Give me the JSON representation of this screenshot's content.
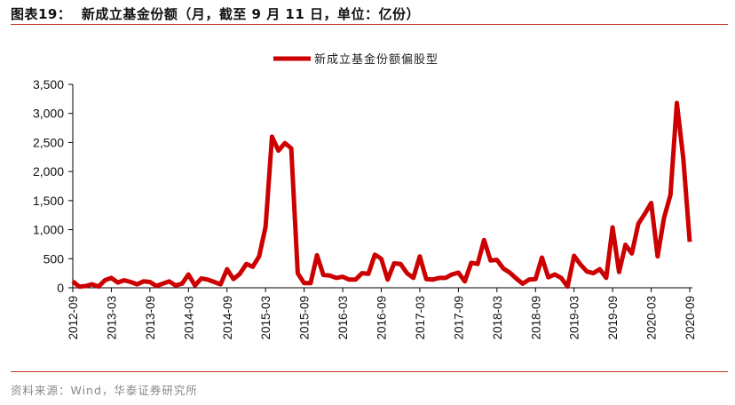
{
  "title": "图表19：  新成立基金份额（月，截至 9 月 11 日，单位：亿份）",
  "source": "资料来源：Wind，华泰证券研究所",
  "colors": {
    "line": "#cc0000",
    "rule": "#c0392b",
    "axis": "#000000"
  },
  "chart_data": {
    "type": "line",
    "title": "新成立基金份额（月，截至 9 月 11 日，单位：亿份）",
    "xlabel": "",
    "ylabel": "",
    "x_start": "2012-09",
    "x_end": "2020-09",
    "x_frequency": "monthly",
    "ylim": [
      0,
      3500
    ],
    "y_ticks": [
      0,
      500,
      1000,
      1500,
      2000,
      2500,
      3000,
      3500
    ],
    "y_tick_labels": [
      "0",
      "500",
      "1,000",
      "1,500",
      "2,000",
      "2,500",
      "3,000",
      "3,500"
    ],
    "x_tick_labels": [
      "2012-09",
      "2013-03",
      "2013-09",
      "2014-03",
      "2014-09",
      "2015-03",
      "2015-09",
      "2016-03",
      "2016-09",
      "2017-03",
      "2017-09",
      "2018-03",
      "2018-09",
      "2019-03",
      "2019-09",
      "2020-03",
      "2020-09"
    ],
    "grid": false,
    "legend_position": "top-center",
    "series": [
      {
        "name": "新成立基金份额偏股型",
        "values": [
          110,
          20,
          30,
          60,
          20,
          130,
          170,
          90,
          130,
          100,
          60,
          110,
          100,
          30,
          70,
          110,
          40,
          70,
          230,
          40,
          160,
          140,
          100,
          60,
          320,
          150,
          240,
          410,
          360,
          540,
          1050,
          2600,
          2360,
          2490,
          2400,
          250,
          80,
          80,
          560,
          220,
          210,
          170,
          190,
          140,
          140,
          250,
          240,
          570,
          500,
          140,
          420,
          410,
          250,
          170,
          540,
          150,
          140,
          170,
          170,
          230,
          260,
          110,
          430,
          410,
          820,
          470,
          480,
          330,
          260,
          160,
          70,
          140,
          150,
          520,
          180,
          230,
          170,
          20,
          550,
          400,
          280,
          250,
          320,
          170,
          1040,
          270,
          740,
          590,
          1100,
          1270,
          1460,
          540,
          1200,
          1600,
          3180,
          2220,
          790
        ]
      }
    ]
  }
}
